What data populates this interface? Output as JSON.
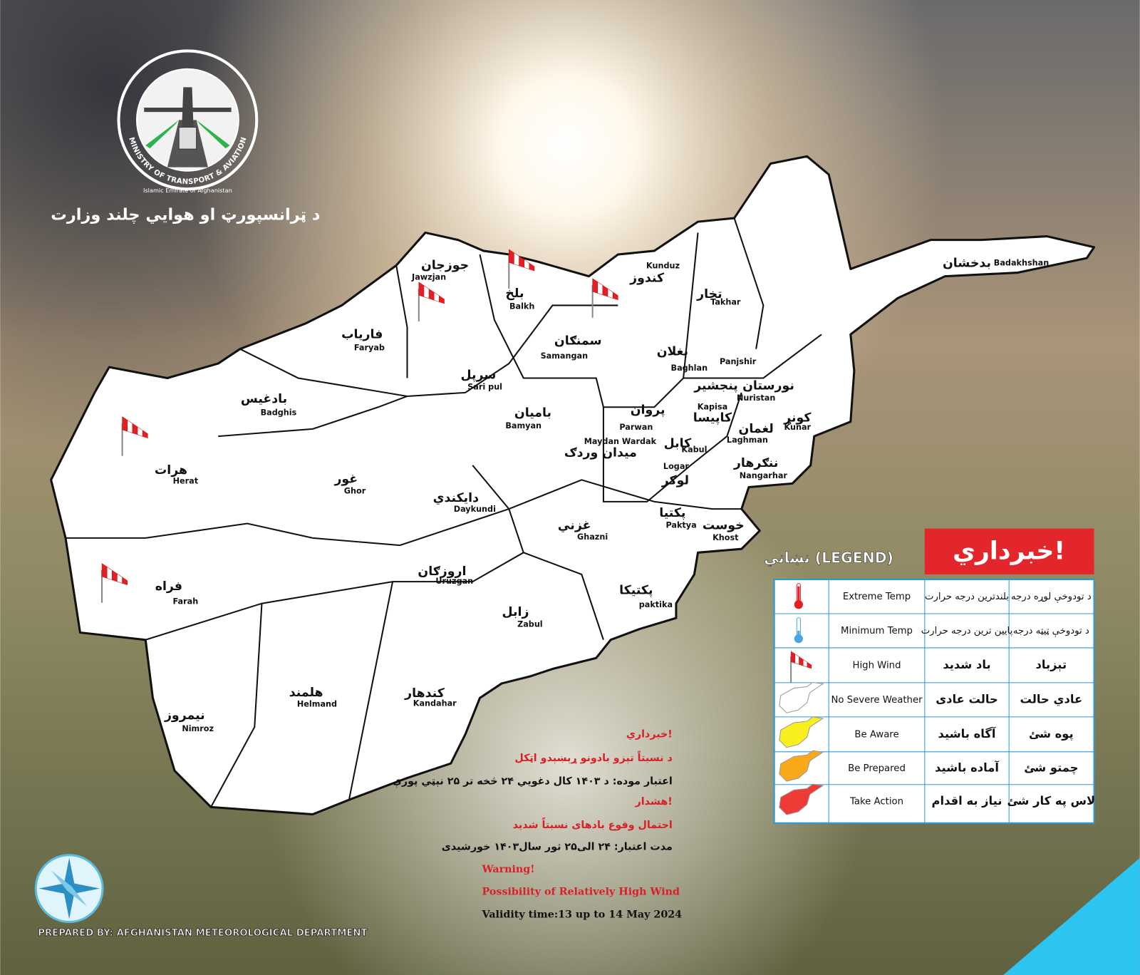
{
  "header": {
    "ministry_name": "د ټرانسپورټ او هوايي چلند وزارت"
  },
  "logo": {
    "english": "MINISTRY OF TRANSPORT & AVIATION",
    "subtitle": "Islamic Emirate of Afghanistan"
  },
  "map": {
    "provinces": [
      {
        "local": "بدخشان",
        "english": "Badakhshan"
      },
      {
        "local": "جوزجان",
        "english": "Jawzjan"
      },
      {
        "local": "بلخ",
        "english": "Balkh"
      },
      {
        "local": "کندوز",
        "english": "Kunduz"
      },
      {
        "local": "تخار",
        "english": "Takhar"
      },
      {
        "local": "فارياب",
        "english": "Faryab"
      },
      {
        "local": "سمنګان",
        "english": "Samangan"
      },
      {
        "local": "بغلان",
        "english": "Baghlan"
      },
      {
        "local": "پنجشير",
        "english": "Panjshir"
      },
      {
        "local": "نورستان",
        "english": "Nuristan"
      },
      {
        "local": "سرپل",
        "english": "Sari pul"
      },
      {
        "local": "بادغيس",
        "english": "Badghis"
      },
      {
        "local": "باميان",
        "english": "Bamyan"
      },
      {
        "local": "پروان",
        "english": "Parwan"
      },
      {
        "local": "کاپیسا",
        "english": "Kapisa"
      },
      {
        "local": "کونړ",
        "english": "Kunar"
      },
      {
        "local": "لغمان",
        "english": "Laghman"
      },
      {
        "local": "کابل",
        "english": "Kabul"
      },
      {
        "local": "میدان وردګ",
        "english": "Maydan Wardak"
      },
      {
        "local": "هرات",
        "english": "Herat"
      },
      {
        "local": "غور",
        "english": "Ghor"
      },
      {
        "local": "ننګرهار",
        "english": "Nangarhar"
      },
      {
        "local": "لوګر",
        "english": "Logar"
      },
      {
        "local": "دايکندي",
        "english": "Daykundi"
      },
      {
        "local": "پکتيا",
        "english": "Paktya"
      },
      {
        "local": "غزني",
        "english": "Ghazni"
      },
      {
        "local": "خوست",
        "english": "Khost"
      },
      {
        "local": "فراه",
        "english": "Farah"
      },
      {
        "local": "اروزګان",
        "english": "Uruzgan"
      },
      {
        "local": "پکتيکا",
        "english": "paktika"
      },
      {
        "local": "زابل",
        "english": "Zabul"
      },
      {
        "local": "هلمند",
        "english": "Helmand"
      },
      {
        "local": "کندهار",
        "english": "Kandahar"
      },
      {
        "local": "نيمروز",
        "english": "Nimroz"
      }
    ]
  },
  "legend": {
    "alert": "خبرداري!",
    "title": "نښاني (LEGEND)",
    "rows": [
      {
        "english": "Extreme Temp",
        "dari": "بلندترین درجه حرارت",
        "pashto": "د تودوخې لوړه درجه"
      },
      {
        "english": "Minimum  Temp",
        "dari": "پایین ترین درجه حرارت",
        "pashto": "د تودوخې ټیټه درجه"
      },
      {
        "english": "High Wind",
        "dari": "باد شدید",
        "pashto": "تېزباد"
      },
      {
        "english": "No Severe Weather",
        "dari": "حالت عادی",
        "pashto": "عادي حالت"
      },
      {
        "english": "Be Aware",
        "dari": "آگاه باشید",
        "pashto": "پوه شئ"
      },
      {
        "english": "Be Prepared",
        "dari": "آماده باشید",
        "pashto": "چمتو شئ"
      },
      {
        "english": "Take Action",
        "dari": "نیاز به اقدام",
        "pashto": "لاس په کار شئ"
      }
    ]
  },
  "warning": {
    "pashto": {
      "title": "خبرداري!",
      "text": "د نسبتاً تېزو بادونو ړېښېدو اټکل",
      "validity": "اعتبار موده: د ۱۴۰۳ کال دغويي ۲۴ څخه تر ۲۵ نېټي پورې"
    },
    "dari": {
      "title": "هشدار!",
      "text": "احتمال وقوع بادهای نسبتاً شدید",
      "validity": "مدت اعتبار: ۲۴ الی۲۵ ثور سال۱۴۰۳ خورشیدی"
    },
    "english": {
      "title": "Warning!",
      "text": "Possibility of Relatively High Wind",
      "validity": "Validity time:13 up to 14 May 2024"
    }
  },
  "footer": {
    "prepared_by": "PREPARED BY: AFGHANISTAN METEOROLOGICAL DEPARTMENT"
  }
}
